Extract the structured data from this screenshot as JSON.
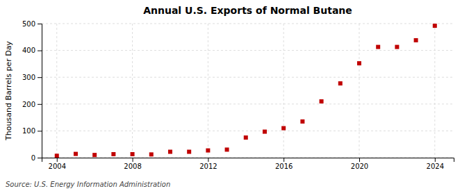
{
  "chart_data": {
    "type": "scatter",
    "title": "Annual U.S. Exports of Normal Butane",
    "ylabel": "Thousand Barrels per Day",
    "source": "Source: U.S. Energy Information Administration",
    "x": [
      2004,
      2005,
      2006,
      2007,
      2008,
      2009,
      2010,
      2011,
      2012,
      2013,
      2014,
      2015,
      2016,
      2017,
      2018,
      2019,
      2020,
      2021,
      2022,
      2023,
      2024
    ],
    "values": [
      7,
      14,
      10,
      13,
      13,
      12,
      22,
      22,
      27,
      30,
      75,
      97,
      110,
      135,
      210,
      277,
      352,
      413,
      413,
      438,
      492
    ],
    "color": "#C00000",
    "marker": "square",
    "xlim": [
      2003.2,
      2025.0
    ],
    "xticks": [
      2004,
      2008,
      2012,
      2016,
      2020,
      2024
    ],
    "ylim": [
      0,
      500
    ],
    "yticks": [
      0,
      100,
      200,
      300,
      400,
      500
    ],
    "grid": true
  }
}
